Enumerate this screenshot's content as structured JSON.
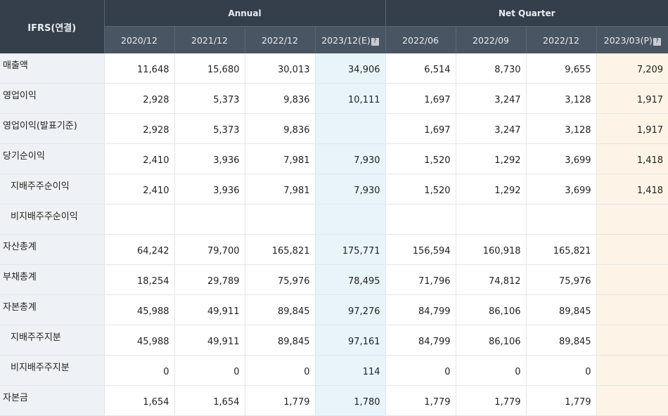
{
  "table": {
    "corner": "IFRS(연결)",
    "groups": {
      "annual": "Annual",
      "quarter": "Net Quarter"
    },
    "periods": [
      "2020/12",
      "2021/12",
      "2022/12",
      "2023/12(E)",
      "2022/06",
      "2022/09",
      "2022/12",
      "2023/03(P)"
    ],
    "info_icon": "?",
    "rows": [
      {
        "label": "매출액",
        "values": [
          "11,648",
          "15,680",
          "30,013",
          "34,906",
          "6,514",
          "8,730",
          "9,655",
          "7,209"
        ]
      },
      {
        "label": "영업이익",
        "values": [
          "2,928",
          "5,373",
          "9,836",
          "10,111",
          "1,697",
          "3,247",
          "3,128",
          "1,917"
        ]
      },
      {
        "label": "영업이익(발표기준)",
        "values": [
          "2,928",
          "5,373",
          "9,836",
          "",
          "1,697",
          "3,247",
          "3,128",
          "1,917"
        ]
      },
      {
        "label": "당기순이익",
        "values": [
          "2,410",
          "3,936",
          "7,981",
          "7,930",
          "1,520",
          "1,292",
          "3,699",
          "1,418"
        ]
      },
      {
        "label": "지배주주순이익",
        "values": [
          "2,410",
          "3,936",
          "7,981",
          "7,930",
          "1,520",
          "1,292",
          "3,699",
          "1,418"
        ]
      },
      {
        "label": "비지배주주순이익",
        "values": [
          "",
          "",
          "",
          "",
          "",
          "",
          "",
          ""
        ]
      },
      {
        "label": "자산총계",
        "values": [
          "64,242",
          "79,700",
          "165,821",
          "175,771",
          "156,594",
          "160,918",
          "165,821",
          ""
        ]
      },
      {
        "label": "부채총계",
        "values": [
          "18,254",
          "29,789",
          "75,976",
          "78,495",
          "71,796",
          "74,812",
          "75,976",
          ""
        ]
      },
      {
        "label": "자본총계",
        "values": [
          "45,988",
          "49,911",
          "89,845",
          "97,276",
          "84,799",
          "86,106",
          "89,845",
          ""
        ]
      },
      {
        "label": "지배주주지분",
        "values": [
          "45,988",
          "49,911",
          "89,845",
          "97,161",
          "84,799",
          "86,106",
          "89,845",
          ""
        ]
      },
      {
        "label": "비지배주주지분",
        "values": [
          "0",
          "0",
          "0",
          "114",
          "0",
          "0",
          "0",
          ""
        ]
      },
      {
        "label": "자본금",
        "values": [
          "1,654",
          "1,654",
          "1,779",
          "1,780",
          "1,779",
          "1,779",
          "1,779",
          ""
        ]
      }
    ]
  },
  "colors": {
    "header_bg": "#353f4b",
    "subheader_bg": "#4a5563",
    "estimate_bg": "#e8f4fa",
    "provisional_bg": "#fdf4e7",
    "label_bg": "#eef1f5"
  }
}
